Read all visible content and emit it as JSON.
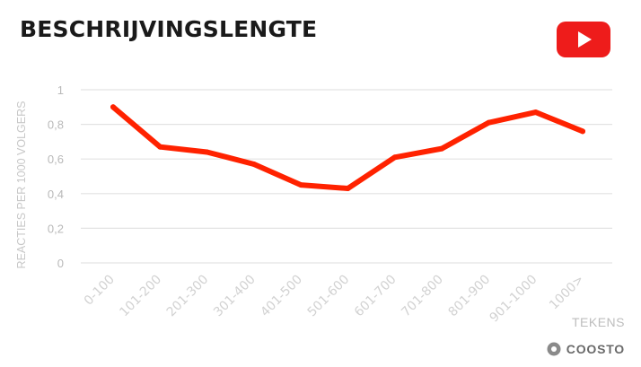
{
  "title": "BESCHRIJVINGSLENGTE",
  "icons": {
    "platform": "youtube-icon",
    "brand": "coosto-logo-icon"
  },
  "colors": {
    "line": "#ff2200",
    "youtube": "#ee1c1b",
    "grid": "#e3e3e3"
  },
  "brand": {
    "name": "COOSTO"
  },
  "chart_data": {
    "type": "line",
    "title": "BESCHRIJVINGSLENGTE",
    "xlabel": "TEKENS",
    "ylabel": "REACTIES PER 1000 VOLGERS",
    "ylim": [
      0,
      1
    ],
    "yticks": [
      "0",
      "0,2",
      "0,4",
      "0,6",
      "0,8",
      "1"
    ],
    "grid": true,
    "categories": [
      "0-100",
      "101-200",
      "201-300",
      "301-400",
      "401-500",
      "501-600",
      "601-700",
      "701-800",
      "801-900",
      "901-1000",
      "1000>"
    ],
    "values": [
      0.9,
      0.67,
      0.64,
      0.57,
      0.45,
      0.43,
      0.61,
      0.66,
      0.81,
      0.87,
      0.76
    ]
  }
}
